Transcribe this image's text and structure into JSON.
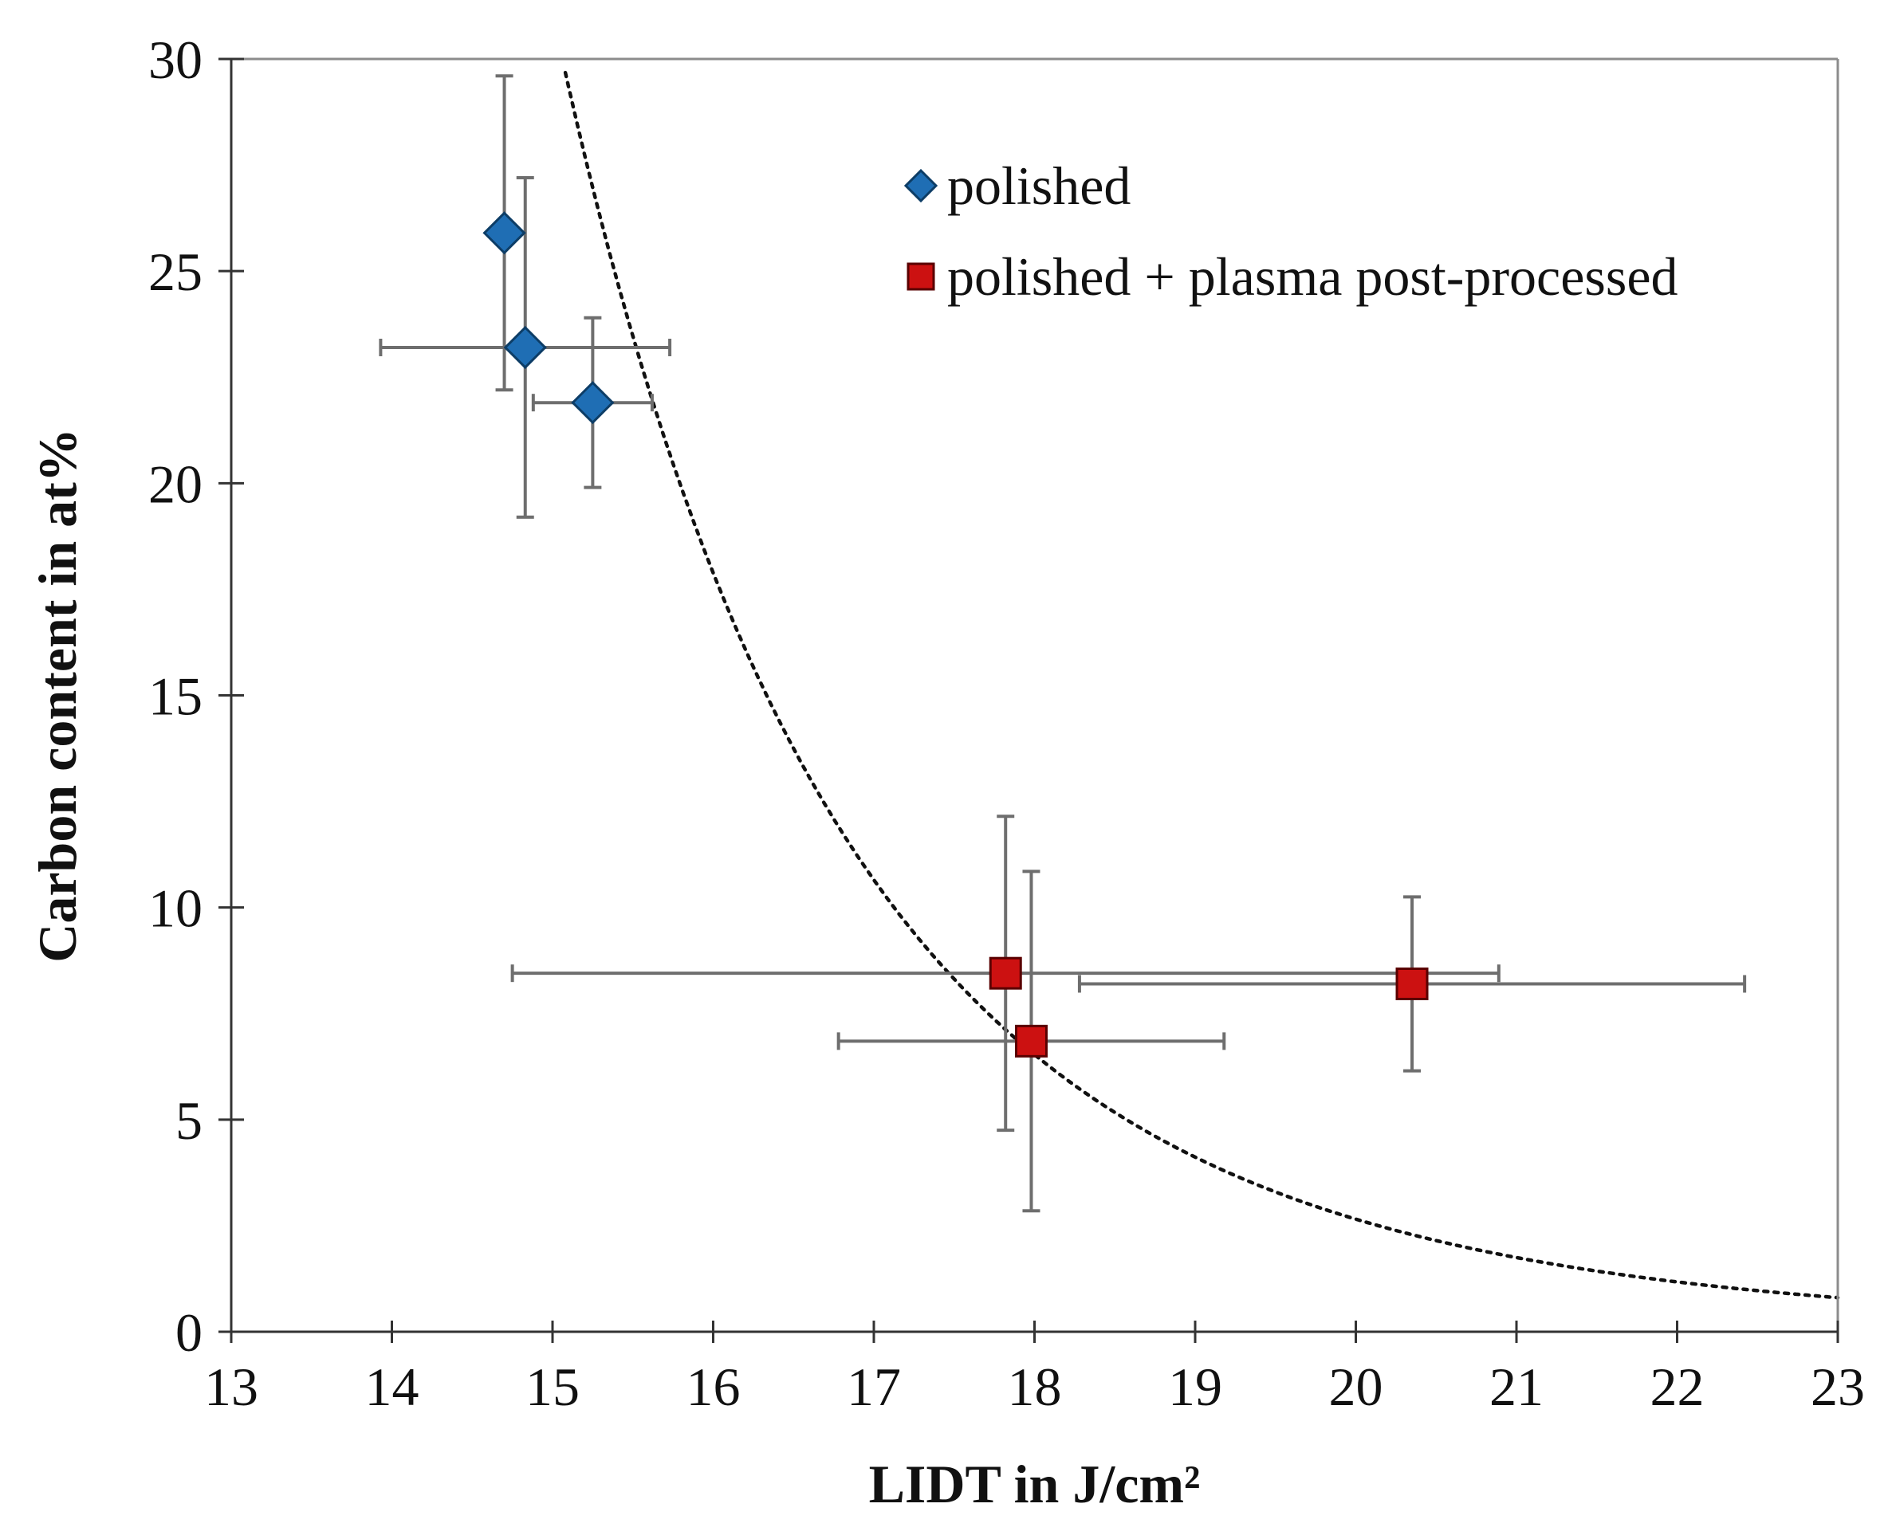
{
  "chart_data": {
    "type": "scatter",
    "title": "",
    "xlabel": "LIDT in J/cm²",
    "ylabel": "Carbon content in at%",
    "xlim": [
      13,
      23
    ],
    "ylim": [
      0,
      30
    ],
    "xticks": [
      13,
      14,
      15,
      16,
      17,
      18,
      19,
      20,
      21,
      22,
      23
    ],
    "yticks": [
      0,
      5,
      10,
      15,
      20,
      25,
      30
    ],
    "xtick_labels": [
      "13",
      "14",
      "15",
      "16",
      "17",
      "18",
      "19",
      "20",
      "21",
      "22",
      "23"
    ],
    "ytick_labels": [
      "0",
      "5",
      "10",
      "15",
      "20",
      "25",
      "30"
    ],
    "grid": false,
    "legend_position": "top-right",
    "series": [
      {
        "name": "polished",
        "marker": "diamond",
        "color": "#1f6eb4",
        "points": [
          {
            "x": 14.7,
            "y": 25.9,
            "xerr": 0,
            "yerr": 3.7
          },
          {
            "x": 14.83,
            "y": 23.2,
            "xerr": 0.9,
            "yerr": 4.0
          },
          {
            "x": 15.25,
            "y": 21.9,
            "xerr": 0.37,
            "yerr": 2.0
          }
        ]
      },
      {
        "name": "polished + plasma post-processed",
        "marker": "square",
        "color": "#cc1111",
        "points": [
          {
            "x": 17.82,
            "y": 8.45,
            "xerr": 3.07,
            "yerr": 3.7
          },
          {
            "x": 17.98,
            "y": 6.85,
            "xerr": 1.2,
            "yerr": 4.0
          },
          {
            "x": 20.35,
            "y": 8.2,
            "xerr": 2.07,
            "yerr": 2.05
          }
        ]
      }
    ],
    "trendline": {
      "type": "power",
      "style": "dotted",
      "color": "#111111",
      "equation": "y = a * x^b",
      "a": 353000000000.0,
      "b": -8.55
    }
  }
}
